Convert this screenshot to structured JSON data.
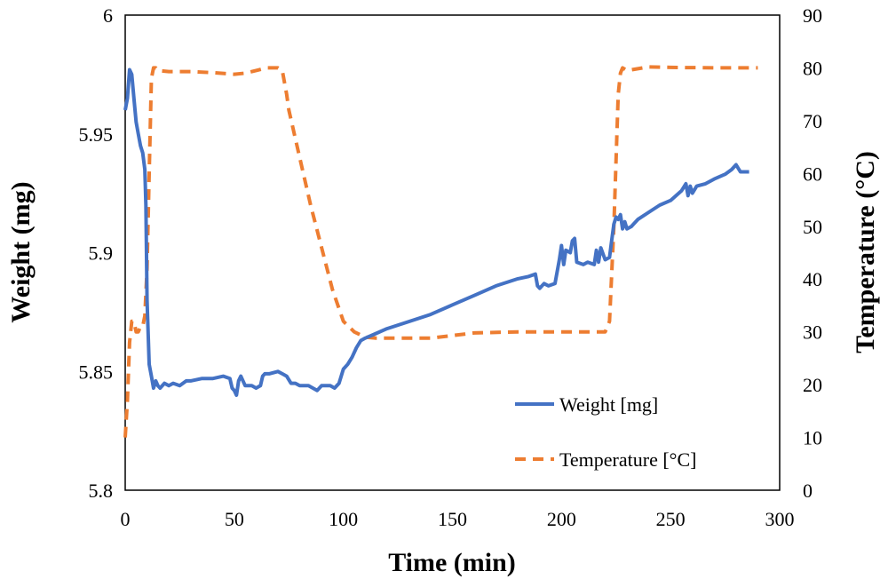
{
  "chart_data": {
    "type": "line",
    "title": "",
    "xlabel": "Time (min)",
    "ylabel": "Weight (mg)",
    "y2label": "Temperature (°C)",
    "xlim": [
      0,
      300
    ],
    "ylim": [
      5.8,
      6.0
    ],
    "y2lim": [
      0,
      90
    ],
    "xticks": [
      "0",
      "50",
      "100",
      "150",
      "200",
      "250",
      "300"
    ],
    "yticks": [
      "5.8",
      "5.85",
      "5.9",
      "5.95",
      "6"
    ],
    "y2ticks": [
      "0",
      "10",
      "20",
      "30",
      "40",
      "50",
      "60",
      "70",
      "80",
      "90"
    ],
    "grid": false,
    "legend_position": "bottom-right",
    "series": [
      {
        "name": "Weight [mg]",
        "axis": "left",
        "color": "#4472C4",
        "style": "solid",
        "x": [
          0,
          1,
          2,
          3,
          4,
          5,
          6,
          7,
          8,
          9,
          9.5,
          10,
          11,
          12,
          13,
          14,
          15,
          16,
          18,
          20,
          22,
          25,
          28,
          30,
          35,
          40,
          45,
          48,
          49,
          50,
          51,
          52,
          53,
          55,
          58,
          60,
          62,
          63,
          64,
          66,
          70,
          72,
          74,
          76,
          78,
          80,
          84,
          86,
          88,
          90,
          94,
          96,
          98,
          100,
          102,
          104,
          106,
          108,
          110,
          115,
          120,
          130,
          140,
          150,
          160,
          170,
          180,
          185,
          188,
          189,
          190,
          192,
          194,
          197,
          199,
          200,
          201,
          202,
          204,
          205,
          206,
          207,
          210,
          212,
          215,
          216,
          217,
          218,
          220,
          222,
          223,
          224,
          225,
          226,
          227,
          228,
          229,
          230,
          232,
          235,
          240,
          245,
          250,
          255,
          257,
          258,
          259,
          260,
          262,
          266,
          270,
          275,
          278,
          280,
          282,
          286
        ],
        "values": [
          5.96,
          5.965,
          5.977,
          5.975,
          5.965,
          5.955,
          5.95,
          5.945,
          5.942,
          5.935,
          5.92,
          5.88,
          5.853,
          5.848,
          5.843,
          5.846,
          5.844,
          5.843,
          5.845,
          5.844,
          5.845,
          5.844,
          5.846,
          5.846,
          5.847,
          5.847,
          5.848,
          5.847,
          5.843,
          5.842,
          5.84,
          5.846,
          5.848,
          5.844,
          5.844,
          5.843,
          5.844,
          5.848,
          5.849,
          5.849,
          5.85,
          5.849,
          5.848,
          5.845,
          5.845,
          5.844,
          5.844,
          5.843,
          5.842,
          5.844,
          5.844,
          5.843,
          5.845,
          5.851,
          5.853,
          5.856,
          5.86,
          5.863,
          5.864,
          5.866,
          5.868,
          5.871,
          5.874,
          5.878,
          5.882,
          5.886,
          5.889,
          5.89,
          5.891,
          5.886,
          5.885,
          5.887,
          5.886,
          5.887,
          5.897,
          5.903,
          5.895,
          5.901,
          5.9,
          5.905,
          5.906,
          5.896,
          5.895,
          5.896,
          5.895,
          5.901,
          5.896,
          5.902,
          5.897,
          5.898,
          5.905,
          5.912,
          5.915,
          5.914,
          5.916,
          5.91,
          5.913,
          5.91,
          5.911,
          5.914,
          5.917,
          5.92,
          5.922,
          5.926,
          5.929,
          5.924,
          5.928,
          5.925,
          5.928,
          5.929,
          5.931,
          5.933,
          5.935,
          5.937,
          5.934,
          5.934
        ]
      },
      {
        "name": "Temperature [°C]",
        "axis": "right",
        "color": "#ED7D31",
        "style": "dashed",
        "x": [
          0,
          1,
          2,
          3,
          4,
          5,
          6,
          7,
          8,
          9,
          10,
          11,
          12,
          13,
          14,
          15,
          20,
          30,
          40,
          50,
          55,
          60,
          65,
          70,
          72,
          74,
          75,
          80,
          85,
          90,
          95,
          100,
          105,
          110,
          115,
          120,
          140,
          160,
          180,
          200,
          210,
          220,
          222,
          224,
          226,
          227,
          228,
          230,
          240,
          250,
          270,
          290
        ],
        "values": [
          10,
          17,
          28,
          32,
          32,
          30,
          30,
          31,
          31,
          33,
          42,
          60,
          78,
          80,
          80,
          79.5,
          79.3,
          79.3,
          79.1,
          78.8,
          79.0,
          79.5,
          80.0,
          80.0,
          79.5,
          75,
          72,
          63,
          54,
          46,
          38,
          32,
          30,
          29,
          28.8,
          28.8,
          28.8,
          29.8,
          30,
          30,
          30,
          30,
          32,
          50,
          75,
          79,
          80,
          79.5,
          80.2,
          80.1,
          80.0,
          80.0
        ]
      }
    ]
  }
}
